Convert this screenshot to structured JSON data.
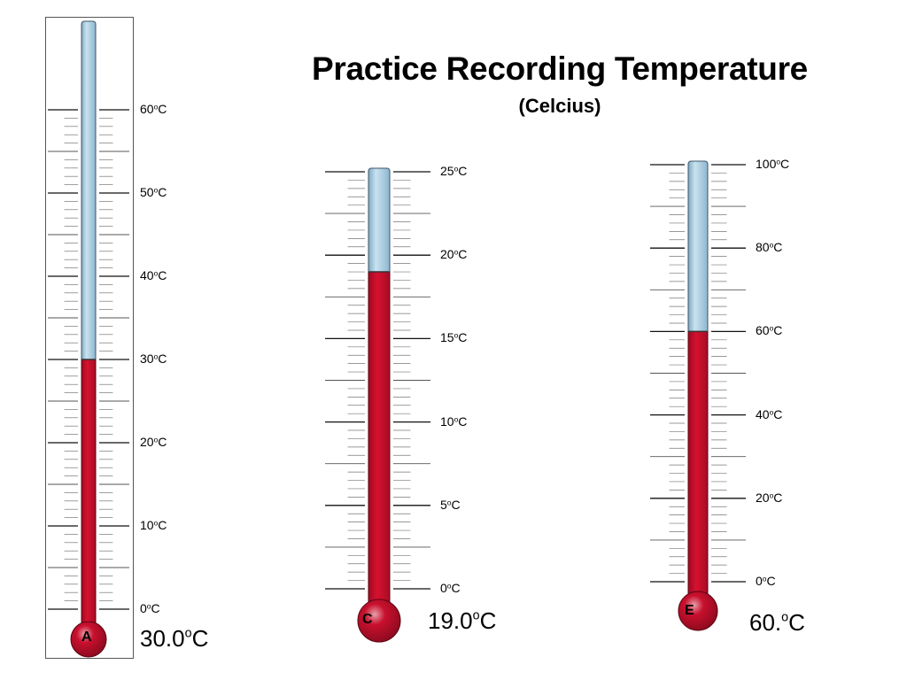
{
  "title": "Practice Recording Temperature",
  "subtitle": "(Celcius)",
  "thermometers": [
    {
      "letter": "A",
      "reading_value": "30.0",
      "reading_unit": "C",
      "level": 30,
      "scale_max": 60,
      "labels": [
        {
          "value": 60,
          "text": "60",
          "unit": "C"
        },
        {
          "value": 50,
          "text": "50",
          "unit": "C"
        },
        {
          "value": 40,
          "text": "40",
          "unit": "C"
        },
        {
          "value": 30,
          "text": "30",
          "unit": "C"
        },
        {
          "value": 20,
          "text": "20",
          "unit": "C"
        },
        {
          "value": 10,
          "text": "10",
          "unit": "C"
        },
        {
          "value": 0,
          "text": "0",
          "unit": "C"
        }
      ]
    },
    {
      "letter": "C",
      "reading_value": "19.0",
      "reading_unit": "C",
      "level": 19,
      "scale_max": 25,
      "labels": [
        {
          "value": 25,
          "text": "25",
          "unit": "C"
        },
        {
          "value": 20,
          "text": "20",
          "unit": "C"
        },
        {
          "value": 15,
          "text": "15",
          "unit": "C"
        },
        {
          "value": 10,
          "text": "10",
          "unit": "C"
        },
        {
          "value": 5,
          "text": "5",
          "unit": "C"
        },
        {
          "value": 0,
          "text": "0",
          "unit": "C"
        }
      ]
    },
    {
      "letter": "E",
      "reading_value": "60.",
      "reading_unit": "C",
      "level": 60,
      "scale_max": 100,
      "labels": [
        {
          "value": 100,
          "text": "100",
          "unit": "C"
        },
        {
          "value": 80,
          "text": "80",
          "unit": "C"
        },
        {
          "value": 60,
          "text": "60",
          "unit": "C"
        },
        {
          "value": 40,
          "text": "40",
          "unit": "C"
        },
        {
          "value": 20,
          "text": "20",
          "unit": "C"
        },
        {
          "value": 0,
          "text": "0",
          "unit": "C"
        }
      ]
    }
  ],
  "colors": {
    "mercury": "#c8102e",
    "tube": "#a9cde2",
    "tick": "#222222"
  }
}
